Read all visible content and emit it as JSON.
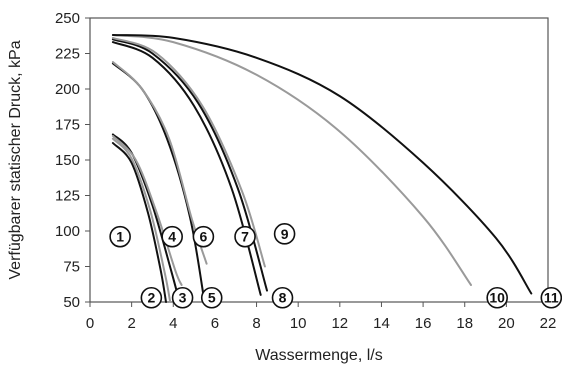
{
  "chart_data": {
    "type": "line",
    "xlabel": "Wassermenge, l/s",
    "ylabel": "Verfügbarer statischer Druck, kPa",
    "xlim": [
      0,
      22
    ],
    "ylim": [
      50,
      250
    ],
    "xticks": [
      0,
      2,
      4,
      6,
      8,
      10,
      12,
      14,
      16,
      18,
      20,
      22
    ],
    "yticks": [
      50,
      75,
      100,
      125,
      150,
      175,
      200,
      225,
      250
    ],
    "grid": false,
    "legend": "none",
    "series": [
      {
        "name": "1",
        "color": "#111111",
        "x": [
          1.1,
          2.0,
          2.8,
          3.4,
          3.65
        ],
        "y": [
          162,
          148,
          112,
          72,
          50
        ],
        "label_pos": [
          2.6,
          96
        ]
      },
      {
        "name": "2",
        "color": "#9a9a9a",
        "x": [
          1.1,
          2.0,
          2.9,
          3.6,
          3.85
        ],
        "y": [
          165,
          151,
          114,
          70,
          50
        ],
        "label_pos": [
          4.1,
          53
        ]
      },
      {
        "name": "3",
        "color": "#111111",
        "x": [
          1.1,
          2.0,
          3.0,
          3.9,
          4.3
        ],
        "y": [
          168,
          155,
          118,
          72,
          50
        ],
        "label_pos": [
          5.6,
          53
        ]
      },
      {
        "name": "4",
        "color": "#9a9a9a",
        "x": [
          1.1,
          2.2,
          3.2,
          4.1,
          4.4
        ],
        "y": [
          167,
          150,
          113,
          72,
          62
        ],
        "label_pos": [
          5.1,
          96
        ]
      },
      {
        "name": "5",
        "color": "#111111",
        "x": [
          1.1,
          2.5,
          3.7,
          4.8,
          5.5
        ],
        "y": [
          218,
          200,
          165,
          110,
          50
        ],
        "label_pos": [
          7.0,
          53
        ]
      },
      {
        "name": "6",
        "color": "#9a9a9a",
        "x": [
          1.1,
          2.5,
          3.8,
          4.9,
          5.6
        ],
        "y": [
          219,
          200,
          165,
          108,
          77
        ],
        "label_pos": [
          6.6,
          96
        ]
      },
      {
        "name": "7",
        "color": "#111111",
        "x": [
          1.1,
          3.0,
          5.0,
          6.8,
          8.2
        ],
        "y": [
          233,
          222,
          188,
          130,
          55
        ],
        "label_pos": [
          8.6,
          96
        ]
      },
      {
        "name": "8",
        "color": "#111111",
        "x": [
          1.1,
          3.0,
          5.2,
          7.1,
          8.5
        ],
        "y": [
          235,
          225,
          190,
          130,
          58
        ],
        "label_pos": [
          10.4,
          53
        ]
      },
      {
        "name": "9",
        "color": "#9a9a9a",
        "x": [
          1.1,
          3.2,
          5.4,
          7.3,
          8.4
        ],
        "y": [
          236,
          225,
          188,
          128,
          75
        ],
        "label_pos": [
          10.5,
          98
        ]
      },
      {
        "name": "10",
        "color": "#9a9a9a",
        "x": [
          1.1,
          4.0,
          8.0,
          12.0,
          16.0,
          18.3
        ],
        "y": [
          238,
          233,
          210,
          170,
          110,
          62
        ],
        "label_pos": [
          21.0,
          53
        ]
      },
      {
        "name": "11",
        "color": "#111111",
        "x": [
          1.1,
          4.0,
          8.0,
          12.0,
          16.0,
          19.5,
          21.2
        ],
        "y": [
          238,
          236,
          222,
          195,
          148,
          95,
          56
        ],
        "label_pos": [
          23.6,
          53
        ]
      }
    ]
  }
}
